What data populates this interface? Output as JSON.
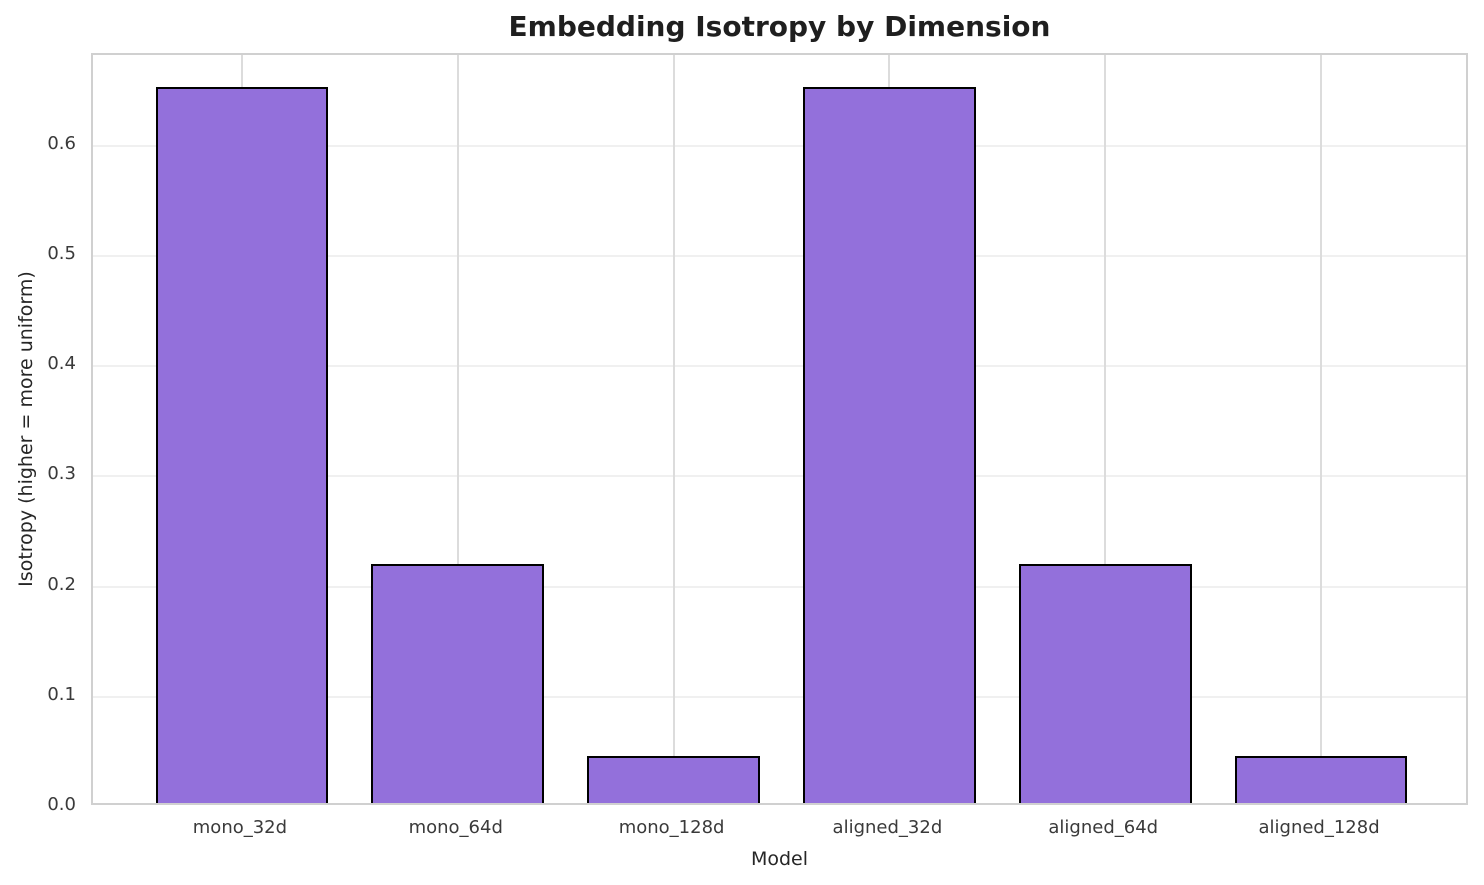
{
  "chart_data": {
    "type": "bar",
    "title": "Embedding Isotropy by Dimension",
    "xlabel": "Model",
    "ylabel": "Isotropy (higher = more uniform)",
    "categories": [
      "mono_32d",
      "mono_64d",
      "mono_128d",
      "aligned_32d",
      "aligned_64d",
      "aligned_128d"
    ],
    "values": [
      0.65,
      0.217,
      0.043,
      0.65,
      0.217,
      0.043
    ],
    "ylim": [
      0,
      0.6825
    ],
    "yticks": [
      0.0,
      0.1,
      0.2,
      0.3,
      0.4,
      0.5,
      0.6
    ],
    "grid": true,
    "legend_position": "none",
    "bar_width_fraction": 0.8,
    "colors": {
      "bar_fill": "#9370DB",
      "bar_edge": "#000000",
      "grid_horizontal": "#f0f0f0",
      "grid_vertical": "#dcdcdc",
      "spine": "#d0d0d0",
      "text": "#262626"
    }
  }
}
